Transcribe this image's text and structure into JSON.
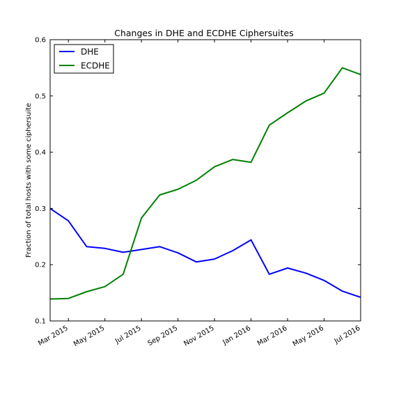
{
  "chart_data": {
    "type": "line",
    "title": "Changes in DHE and ECDHE Ciphersuites",
    "xlabel": "",
    "ylabel": "Fraction of total hosts with some ciphersuite",
    "ylim": [
      0.1,
      0.6
    ],
    "yticks": [
      "0.1",
      "0.2",
      "0.3",
      "0.4",
      "0.5",
      "0.6"
    ],
    "xticks": [
      "Mar 2015",
      "May 2015",
      "Jul 2015",
      "Sep 2015",
      "Nov 2015",
      "Jan 2016",
      "Mar 2016",
      "May 2016",
      "Jul 2016"
    ],
    "x": [
      "2015-02",
      "2015-03",
      "2015-04",
      "2015-05",
      "2015-06",
      "2015-07",
      "2015-08",
      "2015-09",
      "2015-10",
      "2015-11",
      "2015-12",
      "2016-01",
      "2016-02",
      "2016-03",
      "2016-04",
      "2016-05",
      "2016-06",
      "2016-07"
    ],
    "legend_position": "upper-left",
    "grid": false,
    "series": [
      {
        "name": "DHE",
        "color": "#0000ff",
        "values": [
          0.3,
          0.278,
          0.232,
          0.229,
          0.222,
          0.227,
          0.232,
          0.221,
          0.205,
          0.21,
          0.225,
          0.244,
          0.183,
          0.194,
          0.185,
          0.172,
          0.153,
          0.142
        ]
      },
      {
        "name": "ECDHE",
        "color": "#008000",
        "values": [
          0.139,
          0.14,
          0.152,
          0.161,
          0.183,
          0.283,
          0.324,
          0.334,
          0.35,
          0.374,
          0.387,
          0.382,
          0.448,
          0.47,
          0.491,
          0.505,
          0.55,
          0.538
        ]
      }
    ]
  }
}
